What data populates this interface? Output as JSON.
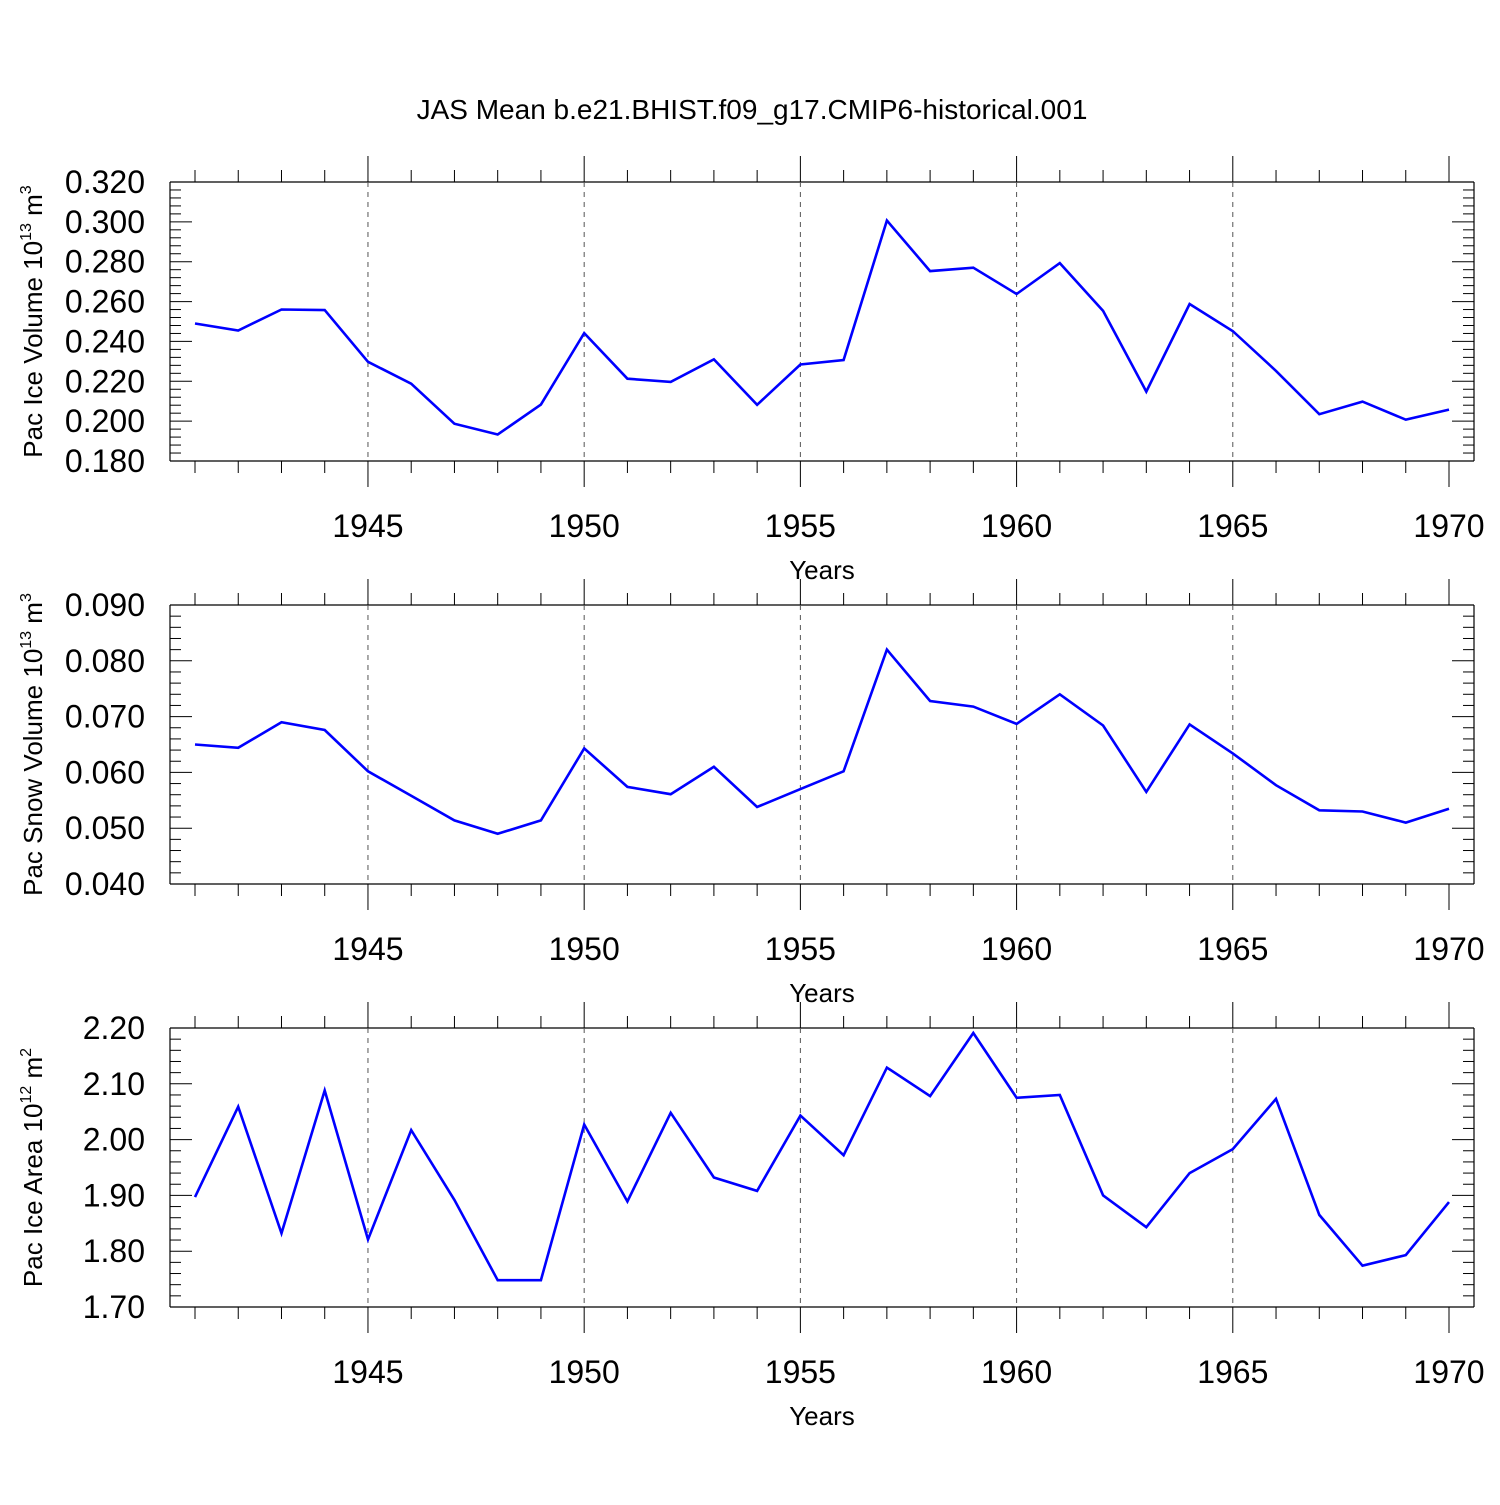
{
  "title": "JAS Mean b.e21.BHIST.f09_g17.CMIP6-historical.001",
  "colors": {
    "line": "#0000ff",
    "axis": "#000000",
    "grid": "#555555"
  },
  "chart_data": [
    {
      "type": "line",
      "name": "ice-volume",
      "ylabel_prefix": "Pac Ice Volume 10",
      "ylabel_exp": "13",
      "ylabel_unit": " m",
      "ylabel_unit_exp": "3",
      "xlabel": "Years",
      "xlim": [
        1941,
        1970
      ],
      "ylim": [
        0.18,
        0.32
      ],
      "y_ticks": [
        "0.180",
        "0.200",
        "0.220",
        "0.240",
        "0.260",
        "0.280",
        "0.300",
        "0.320"
      ],
      "x_ticks": [
        "1945",
        "1950",
        "1955",
        "1960",
        "1965",
        "1970"
      ],
      "x": [
        1941,
        1942,
        1943,
        1944,
        1945,
        1946,
        1947,
        1948,
        1949,
        1950,
        1951,
        1952,
        1953,
        1954,
        1955,
        1956,
        1957,
        1958,
        1959,
        1960,
        1961,
        1962,
        1963,
        1964,
        1965,
        1966,
        1967,
        1968,
        1969,
        1970
      ],
      "values": [
        0.249,
        0.2455,
        0.256,
        0.2557,
        0.2298,
        0.2188,
        0.1987,
        0.1933,
        0.2083,
        0.2442,
        0.2213,
        0.2197,
        0.231,
        0.2082,
        0.2284,
        0.2307,
        0.3007,
        0.2753,
        0.277,
        0.2638,
        0.2793,
        0.2553,
        0.2148,
        0.2588,
        0.2452,
        0.2252,
        0.2035,
        0.2098,
        0.2007,
        0.2058
      ]
    },
    {
      "type": "line",
      "name": "snow-volume",
      "ylabel_prefix": "Pac Snow Volume 10",
      "ylabel_exp": "13",
      "ylabel_unit": " m",
      "ylabel_unit_exp": "3",
      "xlabel": "Years",
      "xlim": [
        1941,
        1970
      ],
      "ylim": [
        0.04,
        0.09
      ],
      "y_ticks": [
        "0.040",
        "0.050",
        "0.060",
        "0.070",
        "0.080",
        "0.090"
      ],
      "x_ticks": [
        "1945",
        "1950",
        "1955",
        "1960",
        "1965",
        "1970"
      ],
      "x": [
        1941,
        1942,
        1943,
        1944,
        1945,
        1946,
        1947,
        1948,
        1949,
        1950,
        1951,
        1952,
        1953,
        1954,
        1955,
        1956,
        1957,
        1958,
        1959,
        1960,
        1961,
        1962,
        1963,
        1964,
        1965,
        1966,
        1967,
        1968,
        1969,
        1970
      ],
      "values": [
        0.065,
        0.0644,
        0.069,
        0.0676,
        0.0602,
        0.0558,
        0.0514,
        0.049,
        0.0514,
        0.0643,
        0.0574,
        0.0561,
        0.061,
        0.0538,
        0.057,
        0.0602,
        0.082,
        0.0728,
        0.0718,
        0.0687,
        0.074,
        0.0684,
        0.0565,
        0.0686,
        0.0634,
        0.0577,
        0.0532,
        0.053,
        0.051,
        0.0535
      ]
    },
    {
      "type": "line",
      "name": "ice-area",
      "ylabel_prefix": "Pac Ice Area 10",
      "ylabel_exp": "12",
      "ylabel_unit": " m",
      "ylabel_unit_exp": "2",
      "xlabel": "Years",
      "xlim": [
        1941,
        1970
      ],
      "ylim": [
        1.7,
        2.2
      ],
      "y_ticks": [
        "1.70",
        "1.80",
        "1.90",
        "2.00",
        "2.10",
        "2.20"
      ],
      "x_ticks": [
        "1945",
        "1950",
        "1955",
        "1960",
        "1965",
        "1970"
      ],
      "x": [
        1941,
        1942,
        1943,
        1944,
        1945,
        1946,
        1947,
        1948,
        1949,
        1950,
        1951,
        1952,
        1953,
        1954,
        1955,
        1956,
        1957,
        1958,
        1959,
        1960,
        1961,
        1962,
        1963,
        1964,
        1965,
        1966,
        1967,
        1968,
        1969,
        1970
      ],
      "values": [
        1.897,
        2.059,
        1.832,
        2.088,
        1.821,
        2.017,
        1.892,
        1.748,
        1.748,
        2.027,
        1.889,
        2.048,
        1.932,
        1.908,
        2.043,
        1.972,
        2.129,
        2.078,
        2.191,
        2.075,
        2.08,
        1.9,
        1.843,
        1.94,
        1.983,
        2.073,
        1.865,
        1.774,
        1.793,
        1.888
      ]
    }
  ]
}
